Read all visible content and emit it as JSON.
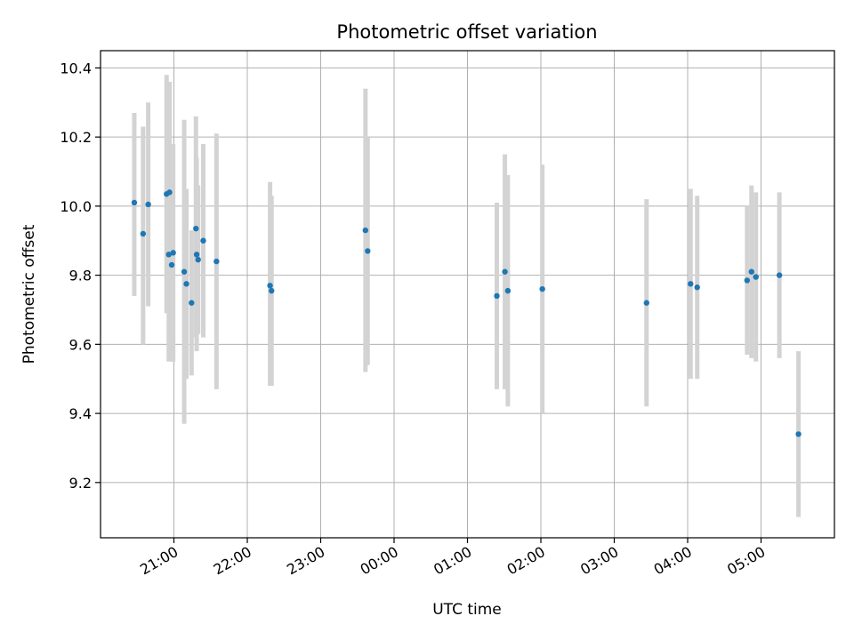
{
  "chart_data": {
    "type": "scatter",
    "title": "Photometric offset variation",
    "xlabel": "UTC time",
    "ylabel": "Photometric offset",
    "x_unit": "hours since 00:00 UTC (negative = previous day)",
    "xlim": [
      -4.0,
      6.0
    ],
    "ylim": [
      9.04,
      10.45
    ],
    "grid": true,
    "marker_color": "#1f77b4",
    "errorbar_color": "#d3d3d3",
    "x_ticks": [
      {
        "value": -3,
        "label": "21:00"
      },
      {
        "value": -2,
        "label": "22:00"
      },
      {
        "value": -1,
        "label": "23:00"
      },
      {
        "value": 0,
        "label": "00:00"
      },
      {
        "value": 1,
        "label": "01:00"
      },
      {
        "value": 2,
        "label": "02:00"
      },
      {
        "value": 3,
        "label": "03:00"
      },
      {
        "value": 4,
        "label": "04:00"
      },
      {
        "value": 5,
        "label": "05:00"
      }
    ],
    "y_ticks": [
      {
        "value": 9.2,
        "label": "9.2"
      },
      {
        "value": 9.4,
        "label": "9.4"
      },
      {
        "value": 9.6,
        "label": "9.6"
      },
      {
        "value": 9.8,
        "label": "9.8"
      },
      {
        "value": 10.0,
        "label": "10.0"
      },
      {
        "value": 10.2,
        "label": "10.2"
      },
      {
        "value": 10.4,
        "label": "10.4"
      }
    ],
    "points": [
      {
        "x": -3.54,
        "y": 10.01,
        "lo": 9.74,
        "hi": 10.27
      },
      {
        "x": -3.42,
        "y": 9.92,
        "lo": 9.6,
        "hi": 10.23
      },
      {
        "x": -3.35,
        "y": 10.005,
        "lo": 9.71,
        "hi": 10.3
      },
      {
        "x": -3.1,
        "y": 10.035,
        "lo": 9.69,
        "hi": 10.38
      },
      {
        "x": -3.06,
        "y": 10.04,
        "lo": 9.7,
        "hi": 10.36
      },
      {
        "x": -3.07,
        "y": 9.86,
        "lo": 9.55,
        "hi": 10.2
      },
      {
        "x": -3.03,
        "y": 9.83,
        "lo": 9.55,
        "hi": 10.18
      },
      {
        "x": -3.01,
        "y": 9.865,
        "lo": 9.55,
        "hi": 10.18
      },
      {
        "x": -2.86,
        "y": 9.81,
        "lo": 9.37,
        "hi": 10.25
      },
      {
        "x": -2.83,
        "y": 9.775,
        "lo": 9.5,
        "hi": 10.05
      },
      {
        "x": -2.76,
        "y": 9.72,
        "lo": 9.51,
        "hi": 9.93
      },
      {
        "x": -2.7,
        "y": 9.935,
        "lo": 9.62,
        "hi": 10.26
      },
      {
        "x": -2.69,
        "y": 9.86,
        "lo": 9.58,
        "hi": 10.14
      },
      {
        "x": -2.67,
        "y": 9.845,
        "lo": 9.63,
        "hi": 10.06
      },
      {
        "x": -2.6,
        "y": 9.9,
        "lo": 9.62,
        "hi": 10.18
      },
      {
        "x": -2.42,
        "y": 9.84,
        "lo": 9.47,
        "hi": 10.21
      },
      {
        "x": -1.69,
        "y": 9.77,
        "lo": 9.48,
        "hi": 10.07
      },
      {
        "x": -1.67,
        "y": 9.755,
        "lo": 9.48,
        "hi": 10.03
      },
      {
        "x": -0.39,
        "y": 9.93,
        "lo": 9.52,
        "hi": 10.34
      },
      {
        "x": -0.36,
        "y": 9.87,
        "lo": 9.54,
        "hi": 10.2
      },
      {
        "x": 1.4,
        "y": 9.74,
        "lo": 9.47,
        "hi": 10.01
      },
      {
        "x": 1.51,
        "y": 9.81,
        "lo": 9.47,
        "hi": 10.15
      },
      {
        "x": 1.55,
        "y": 9.755,
        "lo": 9.42,
        "hi": 10.09
      },
      {
        "x": 2.02,
        "y": 9.76,
        "lo": 9.4,
        "hi": 10.12
      },
      {
        "x": 3.44,
        "y": 9.72,
        "lo": 9.42,
        "hi": 10.02
      },
      {
        "x": 4.04,
        "y": 9.775,
        "lo": 9.5,
        "hi": 10.05
      },
      {
        "x": 4.13,
        "y": 9.765,
        "lo": 9.5,
        "hi": 10.03
      },
      {
        "x": 4.81,
        "y": 9.785,
        "lo": 9.57,
        "hi": 10.0
      },
      {
        "x": 4.87,
        "y": 9.81,
        "lo": 9.56,
        "hi": 10.06
      },
      {
        "x": 4.93,
        "y": 9.795,
        "lo": 9.55,
        "hi": 10.04
      },
      {
        "x": 5.25,
        "y": 9.8,
        "lo": 9.56,
        "hi": 10.04
      },
      {
        "x": 5.51,
        "y": 9.34,
        "lo": 9.1,
        "hi": 9.58
      }
    ]
  }
}
